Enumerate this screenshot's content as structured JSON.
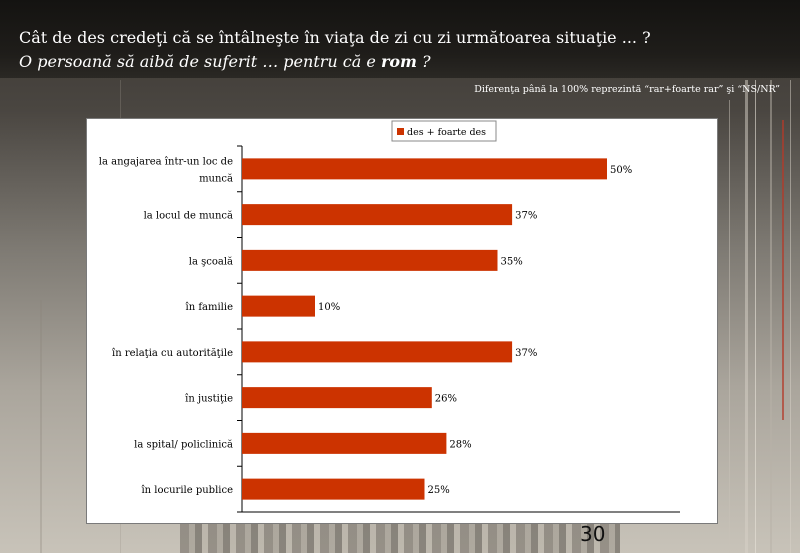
{
  "header": {
    "line1": "Cât de des credeţi că se întâlneşte în viaţa de zi cu zi următoarea situaţie ... ?",
    "line2_prefix": "O persoană să aibă de suferit … pentru că e ",
    "line2_bold": "rom",
    "line2_suffix": " ?"
  },
  "note": "Diferenţa până la 100% reprezintă  “rar+foarte rar” şi “NS/NR”",
  "page_number": "30",
  "colors": {
    "bar": "#cc3300",
    "axis": "#000000",
    "plot_bg": "#ffffff"
  },
  "chart_data": {
    "type": "bar",
    "orientation": "horizontal",
    "categories": [
      "la angajarea într-un loc de muncă",
      "la locul de muncă",
      "la şcoală",
      "în familie",
      "în relaţia cu autorităţile",
      "în justiţie",
      "la spital/ policlinică",
      "în locurile publice"
    ],
    "category_lines": [
      [
        "la angajarea într-un loc de",
        "muncă"
      ],
      [
        "la locul de muncă"
      ],
      [
        "la şcoală"
      ],
      [
        "în familie"
      ],
      [
        "în relaţia cu autorităţile"
      ],
      [
        "în justiţie"
      ],
      [
        "la spital/ policlinică"
      ],
      [
        "în locurile publice"
      ]
    ],
    "series": [
      {
        "name": "des + foarte des",
        "values": [
          50,
          37,
          35,
          10,
          37,
          26,
          28,
          25
        ],
        "labels": [
          "50%",
          "37%",
          "35%",
          "10%",
          "37%",
          "26%",
          "28%",
          "25%"
        ]
      }
    ],
    "xlim": [
      0,
      60
    ],
    "legend": "top-center",
    "grid": false
  }
}
